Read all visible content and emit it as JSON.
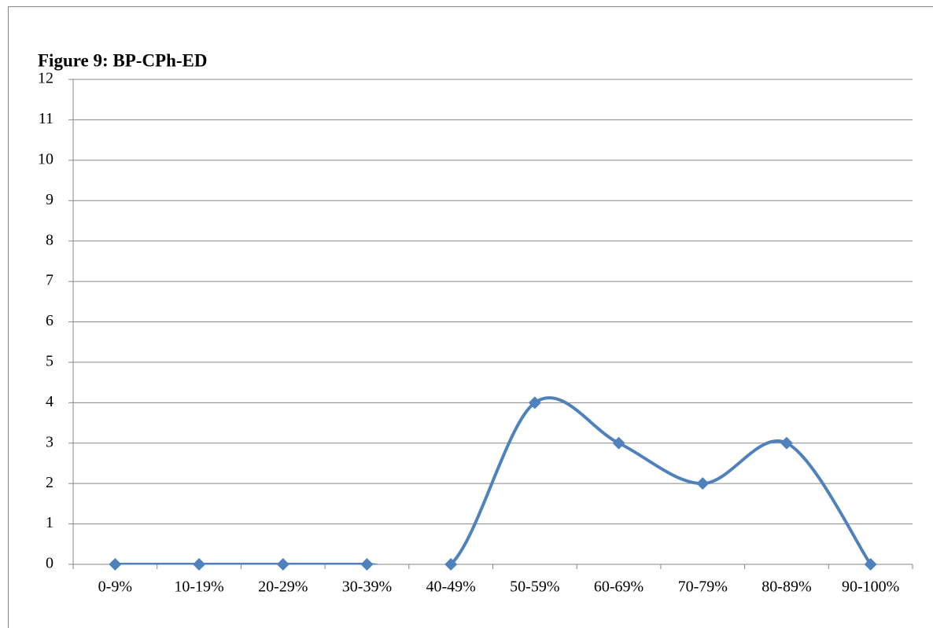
{
  "chart_data": {
    "type": "line",
    "title": "Figure 9: BP-CPh-ED",
    "categories": [
      "0-9%",
      "10-19%",
      "20-29%",
      "30-39%",
      "40-49%",
      "50-59%",
      "60-69%",
      "70-79%",
      "80-89%",
      "90-100%"
    ],
    "series": [
      {
        "name": "BP-CPh-ED",
        "color": "#4f81bd",
        "values": [
          0,
          0,
          0,
          0,
          0,
          4,
          3,
          2,
          3,
          0
        ]
      }
    ],
    "ylim": [
      0,
      12
    ],
    "yticks": [
      0,
      1,
      2,
      3,
      4,
      5,
      6,
      7,
      8,
      9,
      10,
      11,
      12
    ],
    "grid": true,
    "smooth": true
  }
}
